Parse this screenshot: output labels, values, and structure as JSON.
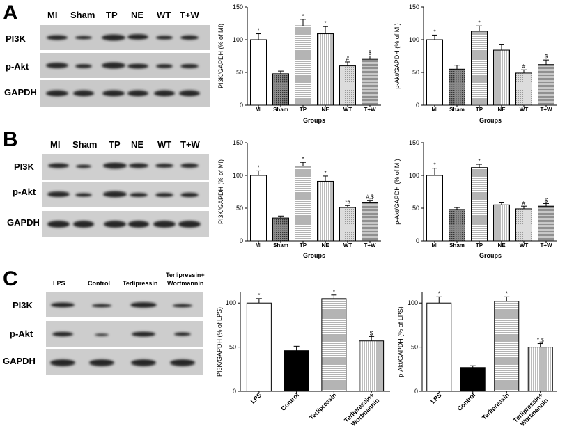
{
  "panels": [
    {
      "id": "A",
      "label": "A",
      "blot": {
        "lanes": [
          "MI",
          "Sham",
          "TP",
          "NE",
          "WT",
          "T+W"
        ],
        "rows": [
          "PI3K",
          "p-Akt",
          "GAPDH"
        ]
      }
    },
    {
      "id": "B",
      "label": "B",
      "blot": {
        "lanes": [
          "MI",
          "Sham",
          "TP",
          "NE",
          "WT",
          "T+W"
        ],
        "rows": [
          "PI3K",
          "p-Akt",
          "GAPDH"
        ]
      }
    },
    {
      "id": "C",
      "label": "C",
      "blot": {
        "lanes": [
          "LPS",
          "Control",
          "Terlipressin",
          "Terlipressin+\nWortmannin"
        ],
        "rows": [
          "PI3K",
          "p-Akt",
          "GAPDH"
        ]
      }
    }
  ],
  "colors": {
    "white": "#ffffff",
    "black": "#000000",
    "hatch": "#555555",
    "blot_bg": "#cfcfcf",
    "band": "#1e1e1e"
  },
  "chart_data": [
    {
      "id": "A-left",
      "type": "bar",
      "title": "",
      "ylabel": "PI3K/GAPDH (% of MI)",
      "xlabel": "Groups",
      "ylim": [
        0,
        150
      ],
      "yticks": [
        0,
        50,
        100,
        150
      ],
      "categories": [
        "MI",
        "Sham",
        "TP",
        "NE",
        "WT",
        "T+W"
      ],
      "values": [
        100,
        48,
        121,
        109,
        60,
        70
      ],
      "errors": [
        9,
        4,
        10,
        11,
        6,
        5
      ],
      "significance": [
        "*",
        "",
        "*",
        "*",
        "#",
        "$"
      ],
      "fills": [
        "white",
        "dots",
        "hlines",
        "vlines",
        "light",
        "hatch"
      ]
    },
    {
      "id": "A-right",
      "type": "bar",
      "title": "",
      "ylabel": "p-Akt/GAPDH (% of MI)",
      "xlabel": "Groups",
      "ylim": [
        0,
        150
      ],
      "yticks": [
        0,
        50,
        100,
        150
      ],
      "categories": [
        "MI",
        "Sham",
        "TP",
        "NE",
        "WT",
        "T+W"
      ],
      "values": [
        100,
        55,
        113,
        84,
        49,
        62
      ],
      "errors": [
        7,
        6,
        8,
        9,
        5,
        7
      ],
      "significance": [
        "*",
        "",
        "*",
        "",
        "#",
        "$"
      ],
      "fills": [
        "white",
        "dots",
        "hlines",
        "vlines",
        "light",
        "hatch"
      ]
    },
    {
      "id": "B-left",
      "type": "bar",
      "title": "",
      "ylabel": "PI3K/GAPDH (% of MI)",
      "xlabel": "Groups",
      "ylim": [
        0,
        150
      ],
      "yticks": [
        0,
        50,
        100,
        150
      ],
      "categories": [
        "MI",
        "Sham",
        "TP",
        "NE",
        "WT",
        "T+W"
      ],
      "values": [
        100,
        35,
        114,
        91,
        51,
        59
      ],
      "errors": [
        7,
        3,
        6,
        8,
        3,
        3
      ],
      "significance": [
        "*",
        "",
        "*",
        "*",
        "*#",
        "#,$"
      ],
      "fills": [
        "white",
        "dots",
        "hlines",
        "vlines",
        "light",
        "hatch"
      ]
    },
    {
      "id": "B-right",
      "type": "bar",
      "title": "",
      "ylabel": "p-Akt/GAPDH (% of MI)",
      "xlabel": "Groups",
      "ylim": [
        0,
        150
      ],
      "yticks": [
        0,
        50,
        100,
        150
      ],
      "categories": [
        "MI",
        "Sham",
        "TP",
        "NE",
        "WT",
        "T+W"
      ],
      "values": [
        100,
        48,
        112,
        55,
        49,
        53
      ],
      "errors": [
        11,
        3,
        5,
        4,
        4,
        4
      ],
      "significance": [
        "*",
        "",
        "*",
        "",
        "#",
        "$"
      ],
      "fills": [
        "white",
        "dots",
        "hlines",
        "vlines",
        "light",
        "hatch"
      ]
    },
    {
      "id": "C-left",
      "type": "bar",
      "title": "",
      "ylabel": "PI3K/GAPDH (% of LPS)",
      "xlabel": "",
      "ylim": [
        0,
        112
      ],
      "yticks": [
        0,
        50,
        100
      ],
      "categories": [
        "LPS",
        "Control",
        "Terlipressin",
        "Terlipressin+\nWortmannin"
      ],
      "values": [
        100,
        46,
        105,
        57
      ],
      "errors": [
        5,
        5,
        4,
        5
      ],
      "significance": [
        "*",
        "",
        "*",
        "$"
      ],
      "fills": [
        "white",
        "black",
        "hlines",
        "vlines"
      ]
    },
    {
      "id": "C-right",
      "type": "bar",
      "title": "",
      "ylabel": "p-Akt/GAPDH (% of LPS)",
      "xlabel": "",
      "ylim": [
        0,
        112
      ],
      "yticks": [
        0,
        50,
        100
      ],
      "categories": [
        "LPS",
        "Control",
        "Terlipressin",
        "Terlipressin+\nWortmannin"
      ],
      "values": [
        100,
        27,
        102,
        50
      ],
      "errors": [
        7,
        2,
        5,
        4
      ],
      "significance": [
        "*",
        "",
        "*",
        "*,$"
      ],
      "fills": [
        "white",
        "black",
        "hlines",
        "vlines"
      ]
    }
  ]
}
